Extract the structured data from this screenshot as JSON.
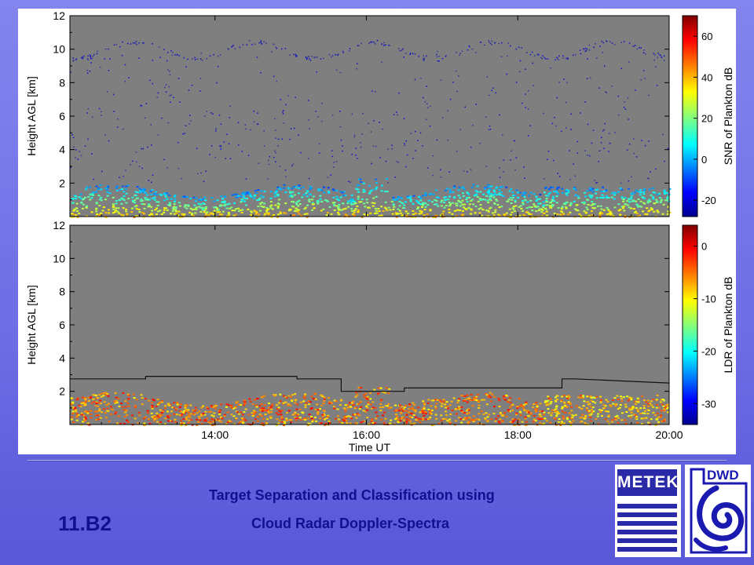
{
  "slide": {
    "number": "11.B2",
    "title_line1": "Target Separation and Classification using",
    "title_line2": "Cloud Radar Doppler-Spectra"
  },
  "logos": {
    "left": "METEK",
    "right": "DWD"
  },
  "colors": {
    "background": "#6e6ee6",
    "plot_bg": "#7f7f7f",
    "title_text": "#101090"
  },
  "chart_data": [
    {
      "type": "heatmap",
      "ylabel": "Height AGL [km]",
      "xlabel": "",
      "y_ticks": [
        2,
        4,
        6,
        8,
        10,
        12
      ],
      "ylim": [
        0,
        12
      ],
      "xlim": [
        "12:05",
        "20:00"
      ],
      "x_ticks": [
        "14:00",
        "16:00",
        "18:00",
        "20:00"
      ],
      "x_tick_labels_shown": false,
      "colorbar": {
        "label": "SNR of Plankton dB",
        "ticks": [
          -20,
          0,
          20,
          40,
          60
        ],
        "range": [
          -28,
          70
        ],
        "colormap": "jet"
      }
    },
    {
      "type": "heatmap",
      "ylabel": "Height AGL [km]",
      "xlabel": "Time UT",
      "y_ticks": [
        2,
        4,
        6,
        8,
        10,
        12
      ],
      "ylim": [
        0,
        12
      ],
      "xlim": [
        "12:05",
        "20:00"
      ],
      "x_ticks": [
        "14:00",
        "16:00",
        "18:00",
        "20:00"
      ],
      "x_tick_labels_shown": true,
      "colorbar": {
        "label": "LDR of Plankton dB",
        "ticks": [
          -30,
          -20,
          -10,
          0
        ],
        "range": [
          -34,
          4
        ],
        "colormap": "jet"
      },
      "boundary_layer_line": {
        "x": [
          "12:05",
          "13:05",
          "13:05",
          "15:05",
          "15:05",
          "15:40",
          "15:40",
          "16:30",
          "16:30",
          "18:35",
          "18:35",
          "18:45",
          "19:30",
          "20:00"
        ],
        "y": [
          2.75,
          2.75,
          2.9,
          2.9,
          2.75,
          2.75,
          2.0,
          2.0,
          2.2,
          2.2,
          2.75,
          2.75,
          2.6,
          2.5
        ]
      }
    }
  ]
}
